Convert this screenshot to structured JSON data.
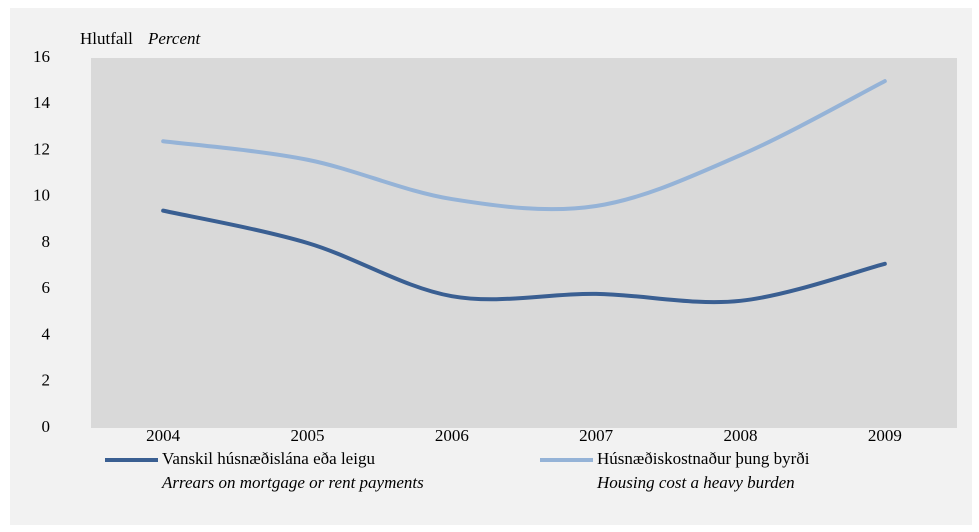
{
  "chart_data": {
    "type": "line",
    "ylabel": "Hlutfall",
    "ylabel_en": "Percent",
    "categories": [
      "2004",
      "2005",
      "2006",
      "2007",
      "2008",
      "2009"
    ],
    "series": [
      {
        "name": "Vanskil húsnæðislána eða leigu",
        "translation": "Arrears on mortgage or rent payments",
        "color": "#3a5f92",
        "values": [
          9.4,
          8.0,
          5.7,
          5.8,
          5.5,
          7.1
        ]
      },
      {
        "name": "Húsnæðiskostnaður þung byrði",
        "translation": "Housing cost a heavy burden",
        "color": "#95b3d7",
        "values": [
          12.4,
          11.6,
          9.9,
          9.6,
          11.8,
          15.0
        ]
      }
    ],
    "ylim": [
      0,
      16
    ],
    "yticks": [
      0,
      2,
      4,
      6,
      8,
      10,
      12,
      14,
      16
    ],
    "grid": false,
    "smooth": true
  }
}
